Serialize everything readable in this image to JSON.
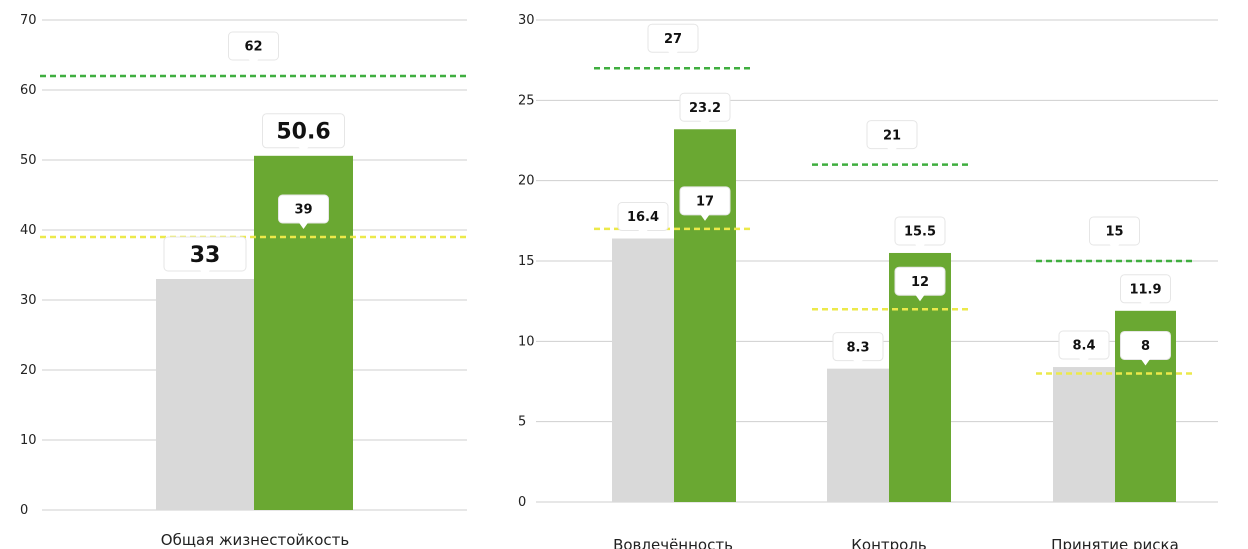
{
  "chart_data": [
    {
      "type": "bar",
      "categories": [
        "Общая жизнестойкость"
      ],
      "ylim": [
        0,
        70
      ],
      "yticks": [
        0,
        10,
        20,
        30,
        40,
        50,
        60,
        70
      ],
      "grid": true,
      "series": [
        {
          "values": [
            33
          ],
          "color": "#d9d9d9"
        },
        {
          "values": [
            50.6
          ],
          "color": "#6aa832"
        }
      ],
      "reference_lines": [
        {
          "values": [
            62
          ],
          "color": "#3fae3f",
          "style": "dashed"
        },
        {
          "values": [
            39
          ],
          "color": "#ece94a",
          "style": "dashed"
        }
      ]
    },
    {
      "type": "bar",
      "categories": [
        "Вовлечённость",
        "Контроль",
        "Принятие риска"
      ],
      "ylim": [
        0,
        30
      ],
      "yticks": [
        0,
        5,
        10,
        15,
        20,
        25,
        30
      ],
      "grid": true,
      "series": [
        {
          "values": [
            16.4,
            8.3,
            8.4
          ],
          "color": "#d9d9d9"
        },
        {
          "values": [
            23.2,
            15.5,
            11.9
          ],
          "color": "#6aa832"
        }
      ],
      "reference_lines": [
        {
          "values": [
            27,
            21,
            15
          ],
          "color": "#3fae3f",
          "style": "dashed"
        },
        {
          "values": [
            17,
            12,
            8
          ],
          "color": "#ece94a",
          "style": "dashed"
        }
      ]
    }
  ]
}
